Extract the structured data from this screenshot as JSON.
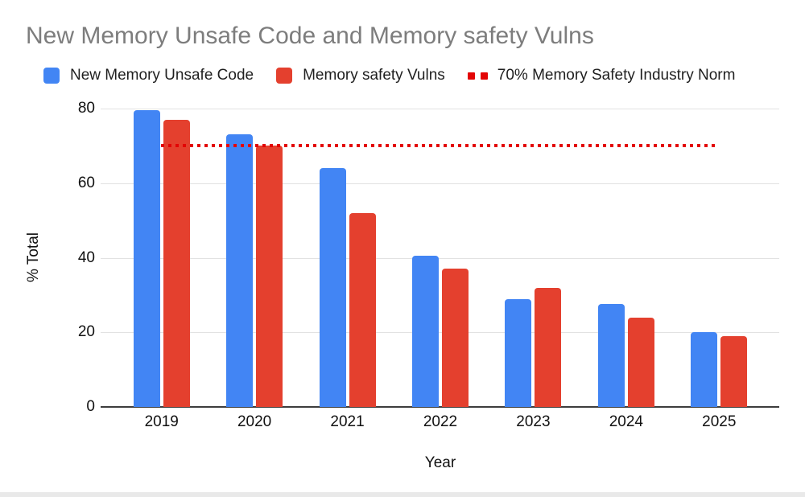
{
  "title": "New Memory Unsafe Code and Memory safety Vulns",
  "legend": {
    "items": [
      {
        "label": "New Memory Unsafe Code",
        "marker": "square",
        "color": "#4285F4"
      },
      {
        "label": "Memory safety Vulns",
        "marker": "square",
        "color": "#E4402E"
      },
      {
        "label": "70% Memory Safety Industry Norm",
        "marker": "dotted-line",
        "color": "#E30505"
      }
    ]
  },
  "chart_data": {
    "type": "bar",
    "title": "New Memory Unsafe Code and Memory safety Vulns",
    "categories": [
      "2019",
      "2020",
      "2021",
      "2022",
      "2023",
      "2024",
      "2025"
    ],
    "series": [
      {
        "name": "New Memory Unsafe Code",
        "color": "#4285F4",
        "values": [
          79.5,
          73,
          64,
          40.5,
          29,
          27.5,
          20
        ]
      },
      {
        "name": "Memory safety Vulns",
        "color": "#E4402E",
        "values": [
          77,
          70,
          52,
          37,
          32,
          24,
          19
        ]
      }
    ],
    "reference_line": {
      "label": "70% Memory Safety Industry Norm",
      "value": 70,
      "style": "dotted",
      "color": "#E30505"
    },
    "xlabel": "Year",
    "ylabel": "% Total",
    "ylim": [
      0,
      80
    ],
    "yticks": [
      0,
      20,
      40,
      60,
      80
    ],
    "grid": "horizontal",
    "legend_position": "top"
  }
}
